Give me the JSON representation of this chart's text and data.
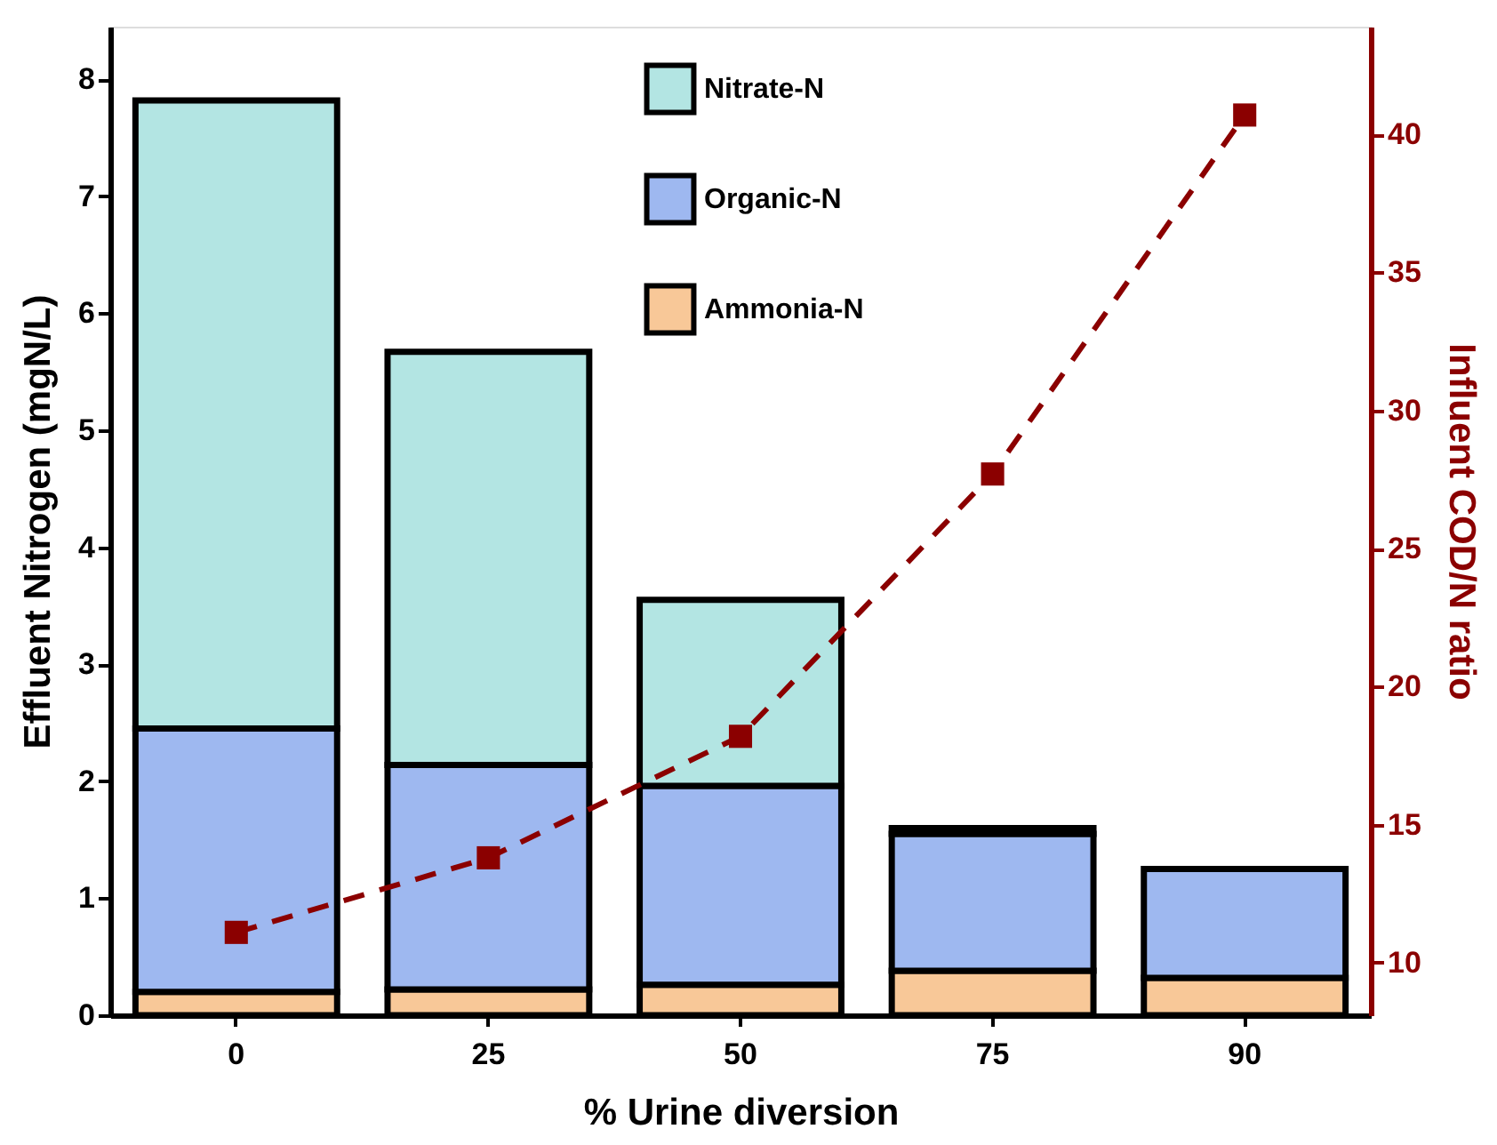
{
  "chart_data": {
    "type": "bar",
    "stacked": true,
    "xlabel": "% Urine diversion",
    "ylabel": "Effluent Nitrogen (mgN/L)",
    "y2label": "Influent COD/N ratio",
    "categories": [
      "0",
      "25",
      "50",
      "75",
      "90"
    ],
    "series": [
      {
        "name": "Ammonia-N",
        "color": "#f8c898",
        "values": [
          0.2,
          0.22,
          0.26,
          0.38,
          0.32
        ]
      },
      {
        "name": "Organic-N",
        "color": "#9eb8f0",
        "values": [
          2.25,
          1.92,
          1.7,
          1.17,
          0.93
        ]
      },
      {
        "name": "Nitrate-N",
        "color": "#b3e5e3",
        "values": [
          5.37,
          3.53,
          1.59,
          0.05,
          null
        ]
      },
      {
        "type": "line",
        "axis": "y2",
        "color": "#8b0000",
        "marker": "square",
        "line_style": "dashed",
        "values": [
          11.1,
          13.8,
          18.2,
          27.7,
          40.7
        ]
      }
    ],
    "ylim": [
      0,
      8.45
    ],
    "yticks": [
      0,
      1,
      2,
      3,
      4,
      5,
      6,
      7,
      8
    ],
    "y2lim": [
      8.1,
      43.9
    ],
    "y2ticks": [
      10,
      15,
      20,
      25,
      30,
      35,
      40
    ],
    "legend": "top",
    "grid": false
  }
}
